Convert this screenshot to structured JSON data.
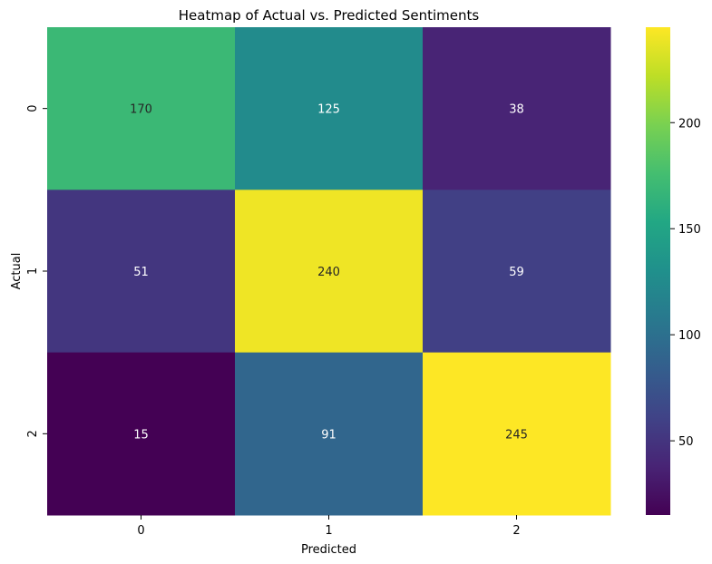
{
  "chart_data": {
    "type": "heatmap",
    "title": "Heatmap of Actual vs. Predicted Sentiments",
    "xlabel": "Predicted",
    "ylabel": "Actual",
    "x_categories": [
      "0",
      "1",
      "2"
    ],
    "y_categories": [
      "0",
      "1",
      "2"
    ],
    "values": [
      [
        170,
        125,
        38
      ],
      [
        51,
        240,
        59
      ],
      [
        15,
        91,
        245
      ]
    ],
    "colormap": "viridis",
    "vmin": 15,
    "vmax": 245,
    "colorbar_ticks": [
      50,
      100,
      150,
      200
    ],
    "annotation_colors": {
      "light": "#ffffff",
      "dark": "#262626"
    }
  }
}
